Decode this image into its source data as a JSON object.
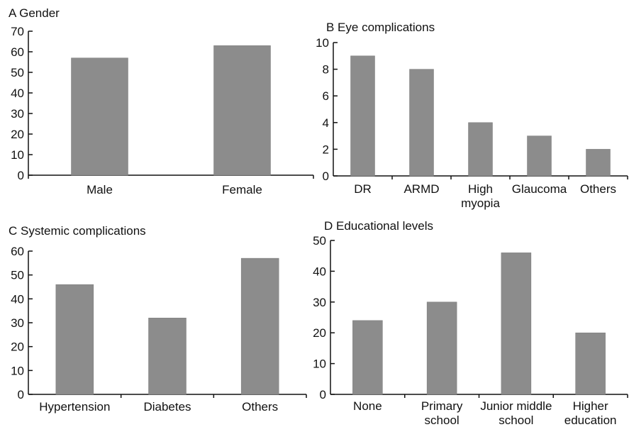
{
  "chart_data": [
    {
      "type": "bar",
      "title": "A  Gender",
      "categories": [
        [
          "Male"
        ],
        [
          "Female"
        ]
      ],
      "values": [
        57,
        63
      ],
      "ylim": [
        0,
        70
      ],
      "yticks": [
        0,
        10,
        20,
        30,
        40,
        50,
        60,
        70
      ],
      "xlabel": "",
      "ylabel": "",
      "bar_color": "#8c8c8c",
      "grid": false
    },
    {
      "type": "bar",
      "title": "B Eye complications",
      "categories": [
        [
          "DR"
        ],
        [
          "ARMD"
        ],
        [
          "High",
          "myopia"
        ],
        [
          "Glaucoma"
        ],
        [
          "Others"
        ]
      ],
      "values": [
        9,
        8,
        4,
        3,
        2
      ],
      "ylim": [
        0,
        10
      ],
      "yticks": [
        0,
        2,
        4,
        6,
        8,
        10
      ],
      "xlabel": "",
      "ylabel": "",
      "bar_color": "#8c8c8c",
      "grid": false
    },
    {
      "type": "bar",
      "title": "C Systemic complications",
      "categories": [
        [
          "Hypertension"
        ],
        [
          "Diabetes"
        ],
        [
          "Others"
        ]
      ],
      "values": [
        46,
        32,
        57
      ],
      "ylim": [
        0,
        60
      ],
      "yticks": [
        0,
        10,
        20,
        30,
        40,
        50,
        60
      ],
      "xlabel": "",
      "ylabel": "",
      "bar_color": "#8c8c8c",
      "grid": false
    },
    {
      "type": "bar",
      "title": "D Educational levels",
      "categories": [
        [
          "None"
        ],
        [
          "Primary",
          "school"
        ],
        [
          "Junior middle",
          "school"
        ],
        [
          "Higher",
          "education"
        ]
      ],
      "values": [
        24,
        30,
        46,
        20
      ],
      "ylim": [
        0,
        50
      ],
      "yticks": [
        0,
        10,
        20,
        30,
        40,
        50
      ],
      "xlabel": "",
      "ylabel": "",
      "bar_color": "#8c8c8c",
      "grid": false
    }
  ]
}
